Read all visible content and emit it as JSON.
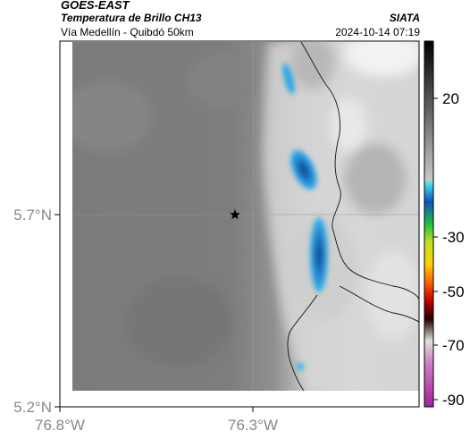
{
  "header": {
    "source": "GOES-EAST",
    "product": "Temperatura de Brillo CH13",
    "route": "Vía Medellín - Quibdó 50km",
    "agency": "SIATA",
    "datetime": "2024-10-14 07:19"
  },
  "axes": {
    "lat_labels": [
      {
        "label": "5.7°N",
        "lat": 5.7
      },
      {
        "label": "5.2°N",
        "lat": 5.2
      }
    ],
    "lon_labels": [
      {
        "label": "76.8°W",
        "lon": -76.8
      },
      {
        "label": "76.3°W",
        "lon": -76.3
      }
    ]
  },
  "colorbar": {
    "ticks": [
      {
        "label": "20",
        "value": 20
      },
      {
        "label": "-30",
        "value": -30
      },
      {
        "label": "-50",
        "value": -50
      },
      {
        "label": "-70",
        "value": -70
      },
      {
        "label": "-90",
        "value": -90
      }
    ]
  },
  "marker": {
    "icon": "star-icon"
  }
}
